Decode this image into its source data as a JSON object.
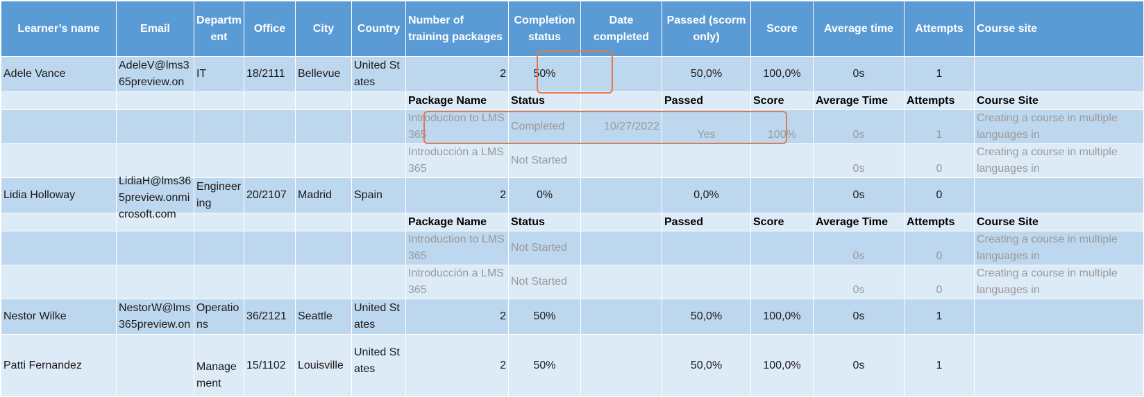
{
  "headers": [
    "Learner’s name",
    "Email",
    "Department",
    "Office",
    "City",
    "Country",
    "Number of training packages",
    "Completion status",
    "Date completed",
    "Passed (scorm only)",
    "Score",
    "Average time",
    "Attempts",
    "Course site"
  ],
  "header_display": [
    "Learner’s name",
    "Email",
    "Depart­ment",
    "Office",
    "City",
    "Country",
    "Number of training packages",
    "Completion status",
    "Date completed",
    "Passed (scorm only)",
    "Score",
    "Average time",
    "Attempts",
    "Course site"
  ],
  "subheaders": {
    "package": "Package Name",
    "status": "Status",
    "passed": "Passed",
    "score": "Score",
    "avg": "Average Time",
    "attempts": "Attempts",
    "site": "Course Site"
  },
  "learners": [
    {
      "name": "Adele Vance",
      "email": "AdeleV@lms365preview.on",
      "dept": "IT",
      "office": "18/2111",
      "city": "Bellevue",
      "country": "United States",
      "packages": "2",
      "completion": "50%",
      "date": "",
      "passed": "50,0%",
      "score": "100,0%",
      "avg": "0s",
      "attempts": "1",
      "site": "",
      "details": [
        {
          "package": "Introduction to LMS365",
          "status": "Completed",
          "date": "10/27/2022",
          "passed": "Yes",
          "score": "100%",
          "avg": "0s",
          "attempts": "1",
          "site": "Creating a course in multiple languages in"
        },
        {
          "package": "Introducción a LMS365",
          "status": "Not Started",
          "date": "",
          "passed": "",
          "score": "",
          "avg": "0s",
          "attempts": "0",
          "site": "Creating a course in multiple languages in"
        }
      ]
    },
    {
      "name": "Lidia Holloway",
      "email": "LidiaH@lms365preview.onmicrosoft.com",
      "dept": "Engineering",
      "office": "20/2107",
      "city": "Madrid",
      "country": "Spain",
      "packages": "2",
      "completion": "0%",
      "date": "",
      "passed": "0,0%",
      "score": "",
      "avg": "0s",
      "attempts": "0",
      "site": "",
      "details": [
        {
          "package": "Introduction to LMS365",
          "status": "Not Started",
          "date": "",
          "passed": "",
          "score": "",
          "avg": "0s",
          "attempts": "0",
          "site": "Creating a course in multiple languages in"
        },
        {
          "package": "Introducción a LMS365",
          "status": "Not Started",
          "date": "",
          "passed": "",
          "score": "",
          "avg": "0s",
          "attempts": "0",
          "site": "Creating a course in multiple languages in"
        }
      ]
    },
    {
      "name": "Nestor Wilke",
      "email": "NestorW@lms365preview.on",
      "dept": "Operations",
      "office": "36/2121",
      "city": "Seattle",
      "country": "United States",
      "packages": "2",
      "completion": "50%",
      "date": "",
      "passed": "50,0%",
      "score": "100,0%",
      "avg": "0s",
      "attempts": "1",
      "site": "",
      "details": []
    },
    {
      "name": "Patti Fernandez",
      "email": "",
      "dept": "Management",
      "office": "15/1102",
      "city": "Louisville",
      "country": "United States",
      "packages": "2",
      "completion": "50%",
      "date": "",
      "passed": "50,0%",
      "score": "100,0%",
      "avg": "0s",
      "attempts": "1",
      "site": "",
      "details": []
    }
  ],
  "colors": {
    "header": "#5b9bd5",
    "row_dark": "#bdd7ee",
    "row_light": "#ddebf7",
    "highlight": "#e07b4f"
  }
}
